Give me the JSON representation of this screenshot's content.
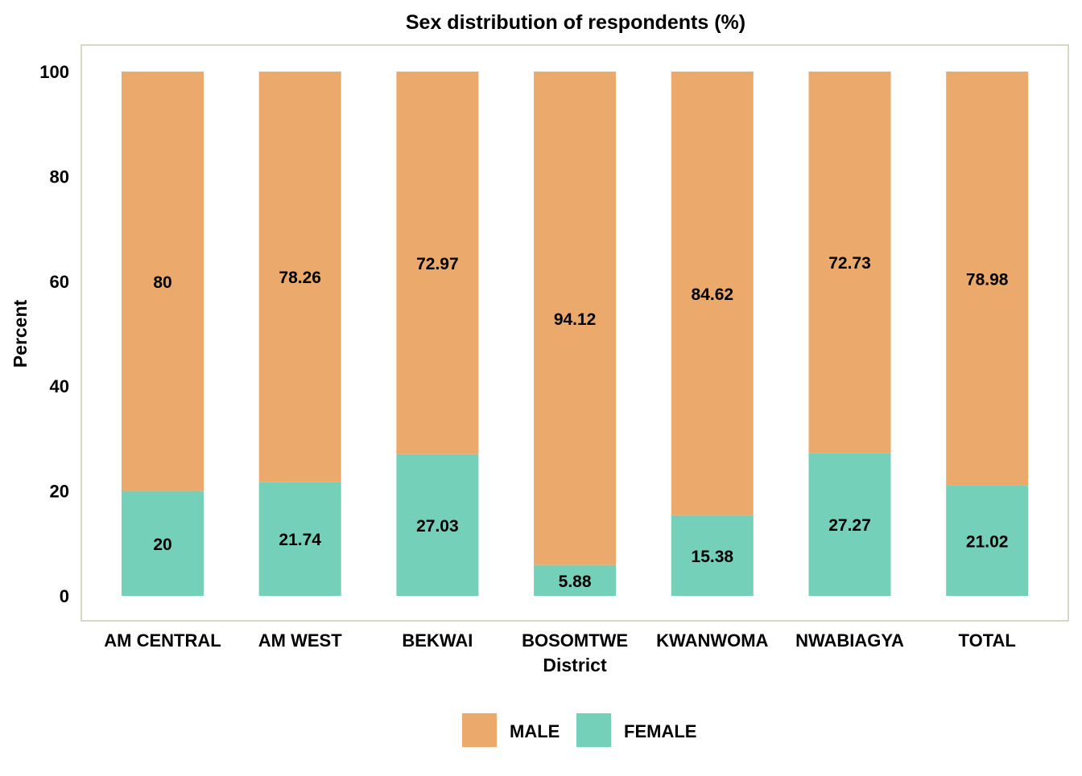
{
  "chart_data": {
    "type": "bar",
    "stacked": true,
    "title": "Sex distribution of respondents (%)",
    "xlabel": "District",
    "ylabel": "Percent",
    "ylim": [
      0,
      100
    ],
    "yticks": [
      "0",
      "20",
      "40",
      "60",
      "80",
      "100"
    ],
    "grid": false,
    "legend_position": "bottom",
    "categories": [
      "AM CENTRAL",
      "AM WEST",
      "BEKWAI",
      "BOSOMTWE",
      "KWANWOMA",
      "NWABIAGYA",
      "TOTAL"
    ],
    "series": [
      {
        "name": "MALE",
        "color": "#EBAA6B",
        "values": [
          80,
          78.26,
          72.97,
          94.12,
          84.62,
          72.73,
          78.98
        ],
        "labels": [
          "80",
          "78.26",
          "72.97",
          "94.12",
          "84.62",
          "72.73",
          "78.98"
        ]
      },
      {
        "name": "FEMALE",
        "color": "#74D0B9",
        "values": [
          20,
          21.74,
          27.03,
          5.88,
          15.38,
          27.27,
          21.02
        ],
        "labels": [
          "20",
          "21.74",
          "27.03",
          "5.88",
          "15.38",
          "27.27",
          "21.02"
        ]
      }
    ],
    "panel_border_color": "#D9D8C4"
  }
}
